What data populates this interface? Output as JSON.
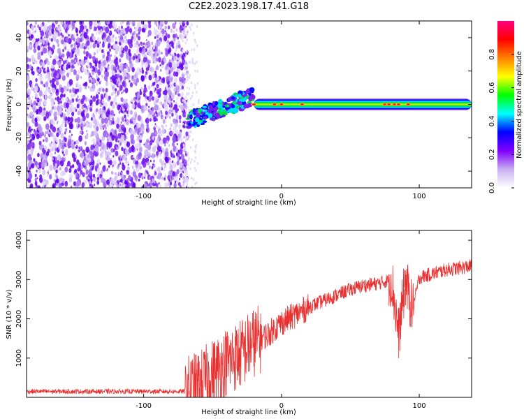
{
  "title": "C2E2.2023.198.17.41.G18",
  "colors": {
    "snr_line": "#e83030",
    "axis": "#000000"
  },
  "chart_data": [
    {
      "type": "heatmap",
      "description_of_content": "spectrogram",
      "xlabel": "Height of straight line (km)",
      "ylabel": "Frequency (Hz)",
      "xlim": [
        -185,
        138
      ],
      "ylim": [
        -50,
        50
      ],
      "xticks": [
        -100,
        0,
        100
      ],
      "yticks": [
        -40,
        -20,
        0,
        20,
        40
      ],
      "colorbar": {
        "label": "Normalized spectral amplitude",
        "range": [
          0.0,
          1.0
        ],
        "ticks": [
          0.0,
          0.2,
          0.4,
          0.6,
          0.8
        ],
        "colormap": [
          "#ffffff",
          "#c8b0f0",
          "#8000ff",
          "#0000ff",
          "#00ffff",
          "#00ff00",
          "#ffff00",
          "#ff8000",
          "#ff0000",
          "#ff0080"
        ]
      },
      "regions": [
        {
          "name": "noise",
          "x_range": [
            -185,
            -68
          ],
          "freq_range": [
            -50,
            50
          ],
          "amplitude": 0.1
        },
        {
          "name": "transition",
          "x_range": [
            -68,
            -20
          ],
          "freq_start": -10,
          "freq_end": 5,
          "amplitude": 0.3
        },
        {
          "name": "carrier",
          "x_range": [
            -20,
            138
          ],
          "freq": 0,
          "amplitude": 0.5
        }
      ],
      "peaks": [
        -20,
        -5,
        0,
        15,
        75,
        78,
        82,
        85,
        92
      ]
    },
    {
      "type": "line",
      "xlabel": "Height of straight line (km)",
      "ylabel": "SNR (10 * v/v)",
      "xlim": [
        -185,
        138
      ],
      "ylim": [
        0,
        4250
      ],
      "xticks": [
        -100,
        0,
        100
      ],
      "yticks": [
        1000,
        2000,
        3000,
        4000
      ],
      "series": [
        {
          "x": [
            -185,
            -150,
            -100,
            -70,
            -60,
            -50,
            -40,
            -30,
            -20,
            -10,
            0,
            10,
            20,
            30,
            40,
            50,
            60,
            70,
            80,
            85,
            90,
            95,
            100,
            110,
            120,
            130,
            138
          ],
          "y": [
            150,
            150,
            150,
            150,
            300,
            600,
            900,
            1100,
            1400,
            1600,
            1900,
            2100,
            2300,
            2450,
            2600,
            2750,
            2850,
            2900,
            3000,
            1600,
            3000,
            2200,
            3050,
            3150,
            3250,
            3300,
            3350
          ]
        }
      ]
    }
  ]
}
